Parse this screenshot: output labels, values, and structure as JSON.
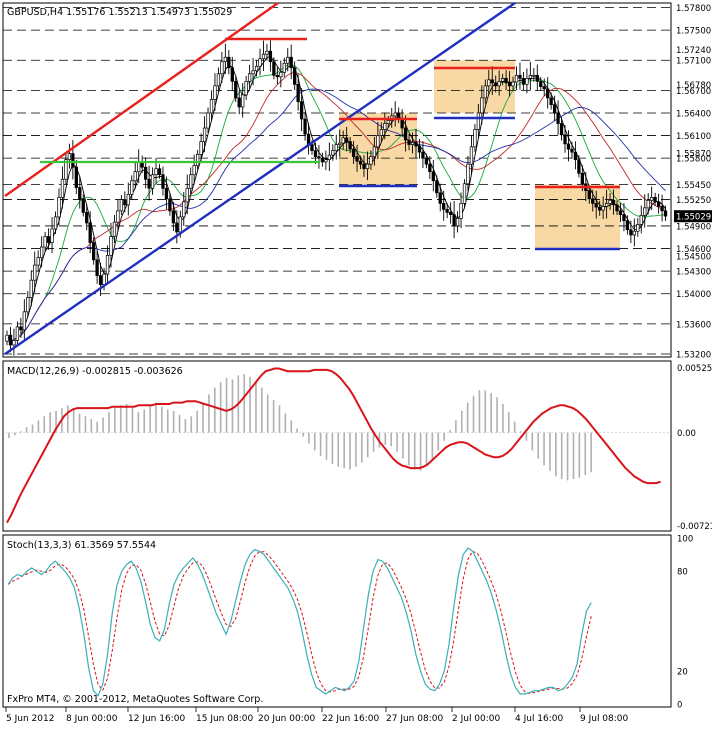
{
  "header": {
    "symbol_line": "GBPUSD,H4  1.55176 1.55213 1.54973 1.55029",
    "macd_line": "MACD(12,26,9) -0.002815 -0.003626",
    "stoch_line": "Stoch(13,3,3) 61.3569 57.5544",
    "copyright": "FxPro MT4, © 2001-2012, MetaQuotes Software Corp."
  },
  "colors": {
    "background": "#ffffff",
    "candle": "#000000",
    "resistance_red": "#e8201e",
    "support_blue": "#1f2fbf",
    "channel_green": "#39c53a",
    "box_fill": "#f8d9a5",
    "ma_fast": "#000000",
    "ma_mid": "#1aa83a",
    "ma_slow": "#c0282a",
    "ma_blue": "#1f2fa8",
    "macd_hist": "#b0b0b0",
    "macd_signal": "#d8141a",
    "stoch_main": "#3ab0b8",
    "stoch_signal": "#d8141a",
    "price_tag_bg": "#000000",
    "price_tag_fg": "#ffffff"
  },
  "chart_data": [
    {
      "type": "candlestick",
      "title": "GBPUSD,H4",
      "ohlc_last": {
        "open": 1.55176,
        "high": 1.55213,
        "low": 1.54973,
        "close": 1.55029
      },
      "ylim": [
        1.5316,
        1.5786
      ],
      "price_labels": [
        "1.57800",
        "1.57500",
        "1.57240",
        "1.57100",
        "1.56780",
        "1.56700",
        "1.56400",
        "1.56100",
        "1.55870",
        "1.55800",
        "1.55450",
        "1.55250",
        "1.54900",
        "1.54600",
        "1.54500",
        "1.54300",
        "1.54000",
        "1.53600",
        "1.53200"
      ],
      "current_price": "1.55029",
      "level_lines": [
        1.578,
        1.575,
        1.571,
        1.567,
        1.564,
        1.561,
        1.558,
        1.5545,
        1.5525,
        1.549,
        1.546,
        1.543,
        1.54,
        1.536,
        1.532
      ],
      "x_labels": [
        "5 Jun 2012",
        "8 Jun 00:00",
        "12 Jun 16:00",
        "15 Jun 08:00",
        "20 Jun 00:00",
        "22 Jun 16:00",
        "27 Jun 08:00",
        "2 Jul 00:00",
        "4 Jul 16:00",
        "9 Jul 08:00"
      ],
      "close_series": [
        1.5345,
        1.5332,
        1.5338,
        1.5356,
        1.5352,
        1.5376,
        1.5395,
        1.5418,
        1.5438,
        1.5448,
        1.5462,
        1.5476,
        1.5468,
        1.5486,
        1.5502,
        1.5528,
        1.5552,
        1.5578,
        1.5586,
        1.5568,
        1.5541,
        1.5526,
        1.5508,
        1.5494,
        1.5468,
        1.5445,
        1.5424,
        1.5412,
        1.5426,
        1.5451,
        1.5476,
        1.5495,
        1.551,
        1.5525,
        1.5518,
        1.5532,
        1.555,
        1.5562,
        1.5575,
        1.5568,
        1.5552,
        1.554,
        1.5558,
        1.5566,
        1.5558,
        1.554,
        1.5526,
        1.551,
        1.5494,
        1.5482,
        1.5502,
        1.5522,
        1.554,
        1.5558,
        1.557,
        1.5585,
        1.5602,
        1.562,
        1.564,
        1.5658,
        1.5676,
        1.5692,
        1.5708,
        1.5714,
        1.57,
        1.5682,
        1.566,
        1.5648,
        1.5664,
        1.5682,
        1.5692,
        1.5696,
        1.5702,
        1.5712,
        1.5718,
        1.5722,
        1.5708,
        1.569,
        1.5688,
        1.5694,
        1.5706,
        1.5714,
        1.57,
        1.5678,
        1.5655,
        1.5632,
        1.5612,
        1.5598,
        1.559,
        1.5582,
        1.558,
        1.5575,
        1.5578,
        1.5584,
        1.559,
        1.5598,
        1.56,
        1.5607,
        1.5602,
        1.5592,
        1.5582,
        1.5576,
        1.5572,
        1.5566,
        1.5572,
        1.5582,
        1.5595,
        1.561,
        1.5618,
        1.5626,
        1.563,
        1.5636,
        1.564,
        1.5633,
        1.562,
        1.5604,
        1.5598,
        1.5601,
        1.5596,
        1.5588,
        1.558,
        1.5572,
        1.5562,
        1.555,
        1.5534,
        1.552,
        1.5512,
        1.5508,
        1.5505,
        1.549,
        1.55,
        1.552,
        1.5546,
        1.5572,
        1.5595,
        1.5618,
        1.564,
        1.566,
        1.5676,
        1.5684,
        1.568,
        1.5676,
        1.5682,
        1.5686,
        1.568,
        1.5676,
        1.5681,
        1.569,
        1.5686,
        1.5678,
        1.5686,
        1.569,
        1.569,
        1.5682,
        1.5675,
        1.5672,
        1.566,
        1.5651,
        1.564,
        1.5626,
        1.5611,
        1.5599,
        1.5592,
        1.5588,
        1.5578,
        1.556,
        1.5546,
        1.5537,
        1.5526,
        1.552,
        1.5515,
        1.5511,
        1.5516,
        1.552,
        1.5524,
        1.5518,
        1.551,
        1.5505,
        1.5497,
        1.5485,
        1.5478,
        1.5483,
        1.5492,
        1.5504,
        1.5514,
        1.5524,
        1.5528,
        1.5522,
        1.5516,
        1.551,
        1.5503
      ]
    },
    {
      "type": "line",
      "title": "MACD(12,26,9)",
      "values_label": "-0.002815 -0.003626",
      "ylim": [
        -0.00721,
        0.00525
      ],
      "y_labels": [
        "0.00525",
        "0.00",
        "-0.00721"
      ],
      "signal": [
        -0.0066,
        -0.006,
        -0.0053,
        -0.0046,
        -0.004,
        -0.0034,
        -0.0028,
        -0.0022,
        -0.0016,
        -0.001,
        -0.0004,
        0.0002,
        0.0007,
        0.0012,
        0.0015,
        0.0017,
        0.0018,
        0.0018,
        0.0018,
        0.0018,
        0.0018,
        0.0018,
        0.0018,
        0.0018,
        0.0019,
        0.0019,
        0.0019,
        0.0019,
        0.0019,
        0.0019,
        0.002,
        0.002,
        0.002,
        0.002,
        0.0021,
        0.0021,
        0.0021,
        0.0021,
        0.0022,
        0.0022,
        0.0022,
        0.0023,
        0.0023,
        0.0023,
        0.0022,
        0.0021,
        0.002,
        0.0019,
        0.0018,
        0.0017,
        0.0016,
        0.0017,
        0.0019,
        0.0022,
        0.0026,
        0.003,
        0.0034,
        0.0038,
        0.0042,
        0.0045,
        0.0046,
        0.0047,
        0.0047,
        0.0046,
        0.0045,
        0.0045,
        0.0045,
        0.0045,
        0.0045,
        0.0045,
        0.0046,
        0.0046,
        0.0046,
        0.0046,
        0.0045,
        0.0043,
        0.004,
        0.0036,
        0.0032,
        0.0027,
        0.0021,
        0.0015,
        0.0009,
        0.0003,
        -0.0002,
        -0.0007,
        -0.0011,
        -0.0015,
        -0.0019,
        -0.0022,
        -0.0024,
        -0.0025,
        -0.0026,
        -0.0026,
        -0.0026,
        -0.0025,
        -0.0023,
        -0.002,
        -0.0017,
        -0.0014,
        -0.0011,
        -0.0009,
        -0.0008,
        -0.0007,
        -0.0007,
        -0.0008,
        -0.001,
        -0.0012,
        -0.0014,
        -0.0016,
        -0.0017,
        -0.0018,
        -0.0018,
        -0.0017,
        -0.0015,
        -0.0012,
        -0.0008,
        -0.0004,
        0.0,
        0.0004,
        0.0008,
        0.0011,
        0.0014,
        0.0016,
        0.0018,
        0.0019,
        0.002,
        0.002,
        0.0019,
        0.0018,
        0.0016,
        0.0013,
        0.001,
        0.0006,
        0.0002,
        -0.0002,
        -0.0006,
        -0.001,
        -0.0014,
        -0.0018,
        -0.0022,
        -0.0026,
        -0.0029,
        -0.0032,
        -0.0034,
        -0.0036,
        -0.0037,
        -0.0037,
        -0.0037,
        -0.0036
      ],
      "histogram": [
        -0.0004,
        -0.0002,
        0.0001,
        0.0004,
        0.0006,
        0.0009,
        0.0012,
        0.0015,
        0.0016,
        0.0018,
        0.002,
        0.0017,
        0.0014,
        0.0012,
        0.001,
        0.0008,
        0.0011,
        0.0015,
        0.0019,
        0.002,
        0.0021,
        0.0018,
        0.0015,
        0.0017,
        0.002,
        0.0022,
        0.0019,
        0.0017,
        0.0016,
        0.0013,
        0.001,
        0.0012,
        0.0016,
        0.0022,
        0.0028,
        0.0033,
        0.0037,
        0.004,
        0.0039,
        0.0042,
        0.0043,
        0.0041,
        0.0037,
        0.0033,
        0.0028,
        0.0024,
        0.002,
        0.0014,
        0.0009,
        0.0003,
        -0.0003,
        -0.0008,
        -0.0013,
        -0.0017,
        -0.002,
        -0.0023,
        -0.0025,
        -0.0026,
        -0.0027,
        -0.0025,
        -0.0022,
        -0.0018,
        -0.0014,
        -0.0011,
        -0.0009,
        -0.001,
        -0.0014,
        -0.0019,
        -0.0024,
        -0.0027,
        -0.0028,
        -0.0025,
        -0.002,
        -0.0013,
        -0.0006,
        0.0002,
        0.0009,
        0.0016,
        0.0022,
        0.0027,
        0.0031,
        0.0031,
        0.0029,
        0.0026,
        0.0021,
        0.0015,
        0.0008,
        0.0001,
        -0.0006,
        -0.0013,
        -0.0019,
        -0.0024,
        -0.0028,
        -0.0032,
        -0.0034,
        -0.0035,
        -0.0034,
        -0.0033,
        -0.0031,
        -0.0029
      ]
    },
    {
      "type": "line",
      "title": "Stoch(13,3,3)",
      "values_label": "61.3569 57.5544",
      "ylim": [
        0,
        100
      ],
      "y_labels": [
        "100",
        "80",
        "20",
        "0"
      ],
      "main": [
        72,
        76,
        78,
        77,
        80,
        82,
        80,
        78,
        80,
        84,
        86,
        83,
        80,
        76,
        70,
        58,
        42,
        22,
        8,
        5,
        12,
        30,
        55,
        72,
        80,
        84,
        86,
        82,
        74,
        62,
        48,
        40,
        38,
        45,
        60,
        72,
        78,
        82,
        85,
        88,
        84,
        78,
        70,
        62,
        54,
        48,
        42,
        50,
        62,
        74,
        84,
        90,
        93,
        92,
        90,
        86,
        82,
        78,
        74,
        70,
        64,
        56,
        44,
        30,
        18,
        10,
        8,
        6,
        8,
        10,
        9,
        8,
        10,
        14,
        26,
        46,
        66,
        80,
        87,
        86,
        82,
        76,
        70,
        64,
        55,
        44,
        30,
        20,
        12,
        9,
        8,
        12,
        20,
        36,
        58,
        78,
        90,
        94,
        92,
        86,
        80,
        74,
        66,
        56,
        44,
        30,
        18,
        10,
        6,
        6,
        7,
        8,
        8,
        9,
        10,
        10,
        8,
        9,
        12,
        16,
        24,
        42,
        56,
        61
      ]
    }
  ]
}
